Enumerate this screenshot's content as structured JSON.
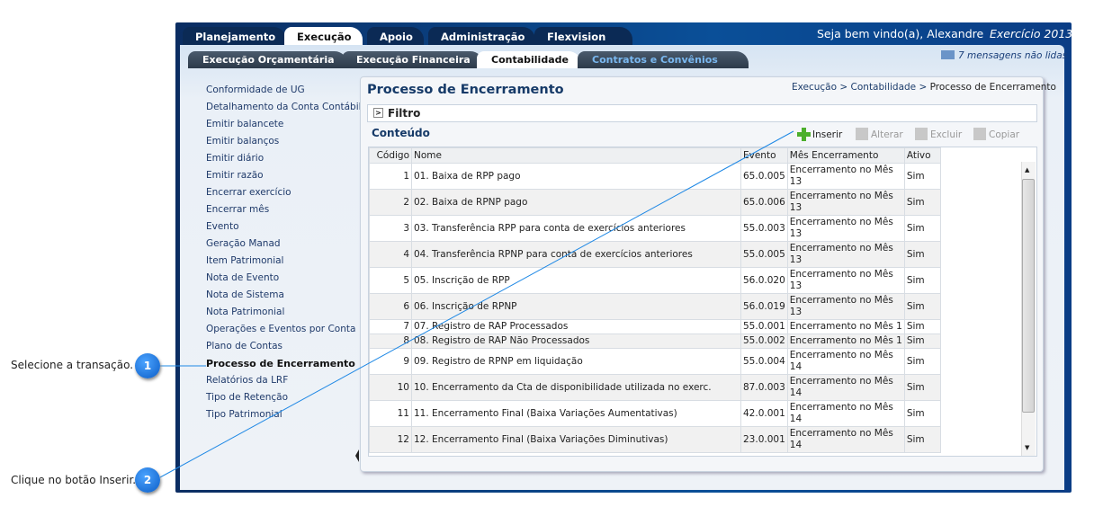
{
  "top_tabs": [
    {
      "label": "Planejamento"
    },
    {
      "label": "Execução",
      "active": true
    },
    {
      "label": "Apoio"
    },
    {
      "label": "Administração"
    },
    {
      "label": "Flexvision"
    }
  ],
  "welcome": "Seja bem vindo(a), Alexandre",
  "exercicio": "Exercício 2013",
  "sub_tabs": [
    {
      "label": "Execução Orçamentária"
    },
    {
      "label": "Execução Financeira"
    },
    {
      "label": "Contabilidade",
      "active": true
    },
    {
      "label": "Contratos e Convênios"
    }
  ],
  "messages": "7 mensagens não lidas",
  "sidebar": {
    "items": [
      "Conformidade de UG",
      "Detalhamento da Conta Contábil",
      "Emitir balancete",
      "Emitir balanços",
      "Emitir diário",
      "Emitir razão",
      "Encerrar exercício",
      "Encerrar mês",
      "Evento",
      "Geração Manad",
      "Item Patrimonial",
      "Nota de Evento",
      "Nota de Sistema",
      "Nota Patrimonial",
      "Operações e Eventos por Conta",
      "Plano de Contas",
      "Processo de Encerramento",
      "Relatórios da LRF",
      "Tipo de Retenção",
      "Tipo Patrimonial"
    ],
    "selected": "Processo de Encerramento"
  },
  "page_title": "Processo de Encerramento",
  "breadcrumb": [
    "Execução",
    "Contabilidade",
    "Processo de Encerramento"
  ],
  "filtro": "Filtro",
  "conteudo": "Conteúdo",
  "toolbar": {
    "inserir": "Inserir",
    "alterar": "Alterar",
    "excluir": "Excluir",
    "copiar": "Copiar"
  },
  "table": {
    "headers": [
      "Código",
      "Nome",
      "Evento",
      "Mês Encerramento",
      "Ativo"
    ],
    "rows": [
      [
        "1",
        "01. Baixa de RPP pago",
        "65.0.005",
        "Encerramento no Mês 13",
        "Sim"
      ],
      [
        "2",
        "02. Baixa de RPNP pago",
        "65.0.006",
        "Encerramento no Mês 13",
        "Sim"
      ],
      [
        "3",
        "03. Transferência RPP para conta de exercícios anteriores",
        "55.0.003",
        "Encerramento no Mês 13",
        "Sim"
      ],
      [
        "4",
        "04. Transferência RPNP para conta de exercícios anteriores",
        "55.0.005",
        "Encerramento no Mês 13",
        "Sim"
      ],
      [
        "5",
        "05. Inscrição de RPP",
        "56.0.020",
        "Encerramento no Mês 13",
        "Sim"
      ],
      [
        "6",
        "06. Inscrição de RPNP",
        "56.0.019",
        "Encerramento no Mês 13",
        "Sim"
      ],
      [
        "7",
        "07. Registro de RAP Processados",
        "55.0.001",
        "Encerramento no Mês 1",
        "Sim"
      ],
      [
        "8",
        "08. Registro de RAP Não Processados",
        "55.0.002",
        "Encerramento no Mês 1",
        "Sim"
      ],
      [
        "9",
        "09. Registro de RPNP em liquidação",
        "55.0.004",
        "Encerramento no Mês 14",
        "Sim"
      ],
      [
        "10",
        "10. Encerramento da Cta de disponibilidade utilizada no exerc.",
        "87.0.003",
        "Encerramento no Mês 14",
        "Sim"
      ],
      [
        "11",
        "11. Encerramento Final (Baixa Variações Aumentativas)",
        "42.0.001",
        "Encerramento no Mês 14",
        "Sim"
      ],
      [
        "12",
        "12. Encerramento Final (Baixa Variações Diminutivas)",
        "23.0.001",
        "Encerramento no Mês 14",
        "Sim"
      ]
    ]
  },
  "callouts": [
    {
      "number": "1",
      "text": "Selecione a transação."
    },
    {
      "number": "2",
      "text": "Clique no botão Inserir."
    }
  ]
}
